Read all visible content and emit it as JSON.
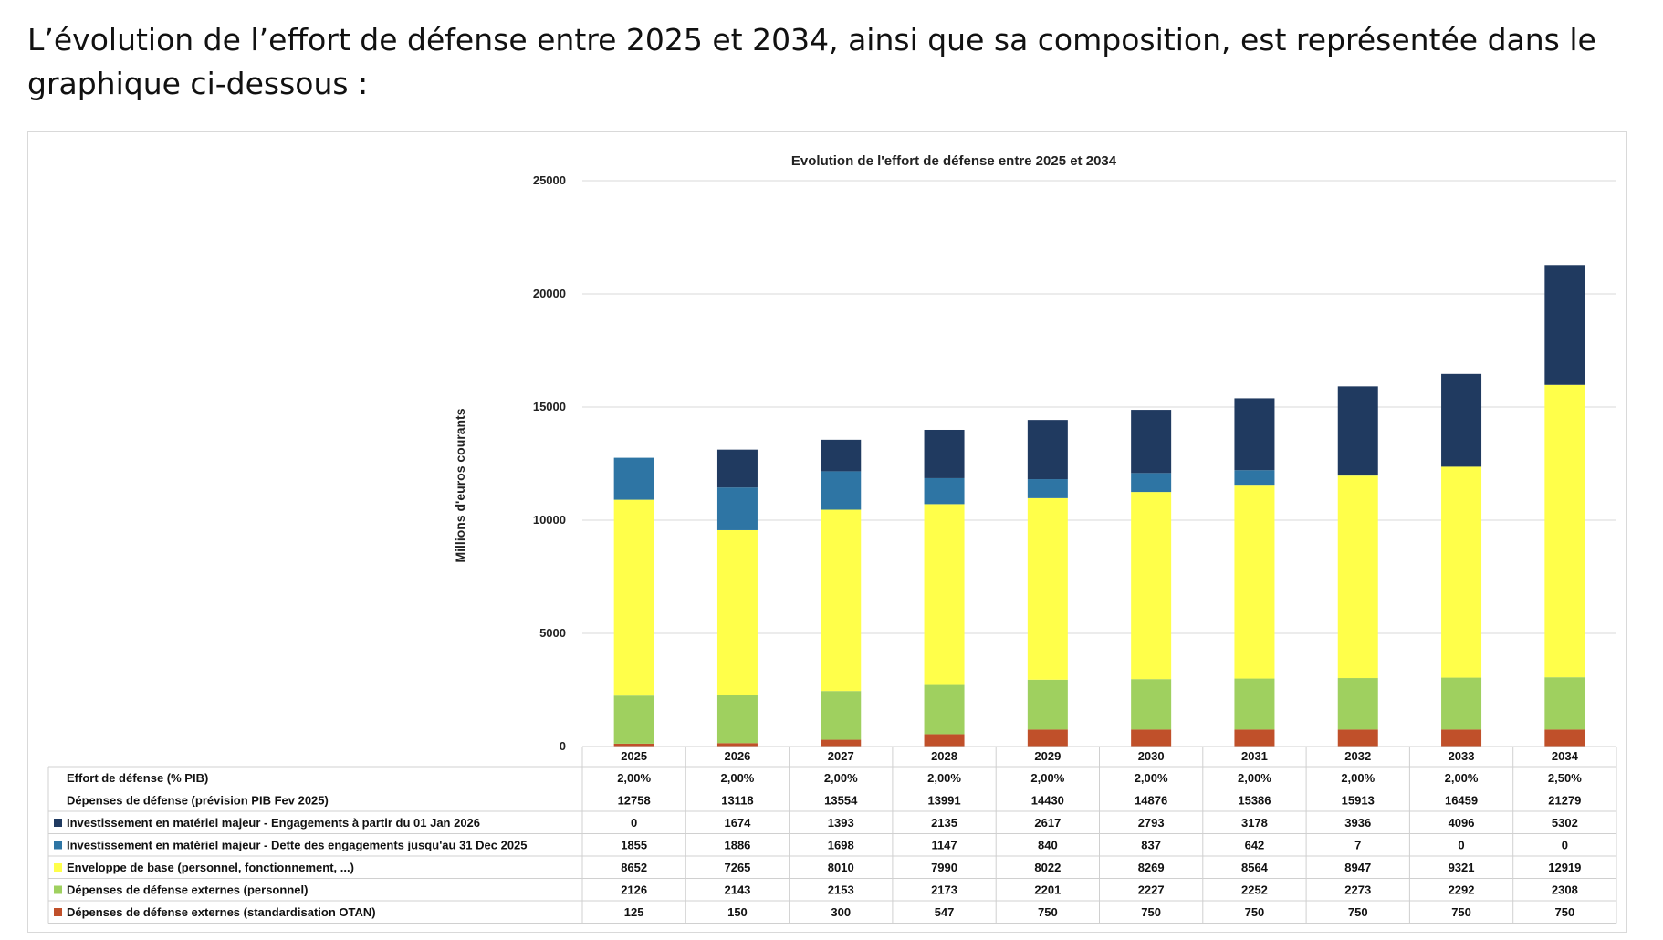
{
  "intro_text": "L’évolution de l’effort de défense entre 2025 et 2034, ainsi que sa composition, est représentée dans le graphique ci-dessous :",
  "chart_data": {
    "type": "bar",
    "stacked": true,
    "title": "Evolution de l'effort de défense entre 2025 et 2034",
    "ylabel": "Millions d'euros courants",
    "xlabel": "",
    "ylim": [
      0,
      25000
    ],
    "yticks": [
      0,
      5000,
      10000,
      15000,
      20000,
      25000
    ],
    "grid": true,
    "categories": [
      "2025",
      "2026",
      "2027",
      "2028",
      "2029",
      "2030",
      "2031",
      "2032",
      "2033",
      "2034"
    ],
    "series": [
      {
        "name": "Dépenses de défense externes (standardisation OTAN)",
        "color": "#c0502a",
        "values": [
          125,
          150,
          300,
          547,
          750,
          750,
          750,
          750,
          750,
          750
        ]
      },
      {
        "name": "Dépenses de défense externes (personnel)",
        "color": "#9fd05f",
        "values": [
          2126,
          2143,
          2153,
          2173,
          2201,
          2227,
          2252,
          2273,
          2292,
          2308
        ]
      },
      {
        "name": "Enveloppe de base (personnel, fonctionnement, ...)",
        "color": "#ffff4a",
        "values": [
          8652,
          7265,
          8010,
          7990,
          8022,
          8269,
          8564,
          8947,
          9321,
          12919
        ]
      },
      {
        "name": "Investissement en matériel majeur - Dette des engagements jusqu'au 31 Dec 2025",
        "color": "#2e75a4",
        "values": [
          1855,
          1886,
          1698,
          1147,
          840,
          837,
          642,
          7,
          0,
          0
        ]
      },
      {
        "name": "Investissement en matériel majeur - Engagements à partir du 01 Jan 2026",
        "color": "#203a60",
        "values": [
          0,
          1674,
          1393,
          2135,
          2617,
          2793,
          3178,
          3936,
          4096,
          5302
        ]
      }
    ],
    "table_rows": [
      {
        "label": "Effort de défense (% PIB)",
        "marker": "",
        "values": [
          "2,00%",
          "2,00%",
          "2,00%",
          "2,00%",
          "2,00%",
          "2,00%",
          "2,00%",
          "2,00%",
          "2,00%",
          "2,50%"
        ]
      },
      {
        "label": "Dépenses de défense (prévision PIB Fev 2025)",
        "marker": "",
        "values": [
          "12758",
          "13118",
          "13554",
          "13991",
          "14430",
          "14876",
          "15386",
          "15913",
          "16459",
          "21279"
        ]
      },
      {
        "label": "Investissement en matériel majeur - Engagements à partir du 01 Jan 2026",
        "marker": "#203a60",
        "values": [
          "0",
          "1674",
          "1393",
          "2135",
          "2617",
          "2793",
          "3178",
          "3936",
          "4096",
          "5302"
        ]
      },
      {
        "label": "Investissement en matériel majeur - Dette des engagements jusqu'au 31 Dec 2025",
        "marker": "#2e75a4",
        "values": [
          "1855",
          "1886",
          "1698",
          "1147",
          "840",
          "837",
          "642",
          "7",
          "0",
          "0"
        ]
      },
      {
        "label": "Enveloppe de base (personnel, fonctionnement, ...)",
        "marker": "#ffff4a",
        "values": [
          "8652",
          "7265",
          "8010",
          "7990",
          "8022",
          "8269",
          "8564",
          "8947",
          "9321",
          "12919"
        ]
      },
      {
        "label": "Dépenses de défense externes (personnel)",
        "marker": "#9fd05f",
        "values": [
          "2126",
          "2143",
          "2153",
          "2173",
          "2201",
          "2227",
          "2252",
          "2273",
          "2292",
          "2308"
        ]
      },
      {
        "label": "Dépenses de défense externes (standardisation OTAN)",
        "marker": "#c0502a",
        "values": [
          "125",
          "150",
          "300",
          "547",
          "750",
          "750",
          "750",
          "750",
          "750",
          "750"
        ]
      }
    ]
  }
}
